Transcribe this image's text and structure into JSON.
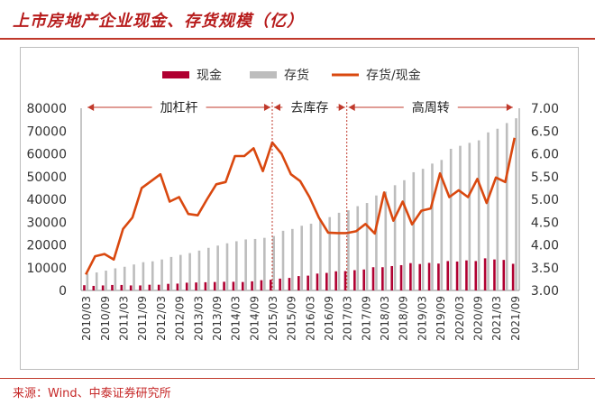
{
  "title": "上市房地产企业现金、存货规模（亿）",
  "source": "来源：Wind、中泰证券研究所",
  "colors": {
    "cash": "#b00031",
    "inventory": "#bdbdbd",
    "ratio": "#d9480f",
    "phase": "#c0392b",
    "title": "#b71c1c"
  },
  "chart_data": {
    "type": "bar",
    "legend": {
      "position": "top",
      "items": [
        "现金",
        "存货",
        "存货/现金"
      ]
    },
    "left_axis": {
      "ylim": [
        0,
        80000
      ],
      "ticks": [
        "0",
        "10000",
        "20000",
        "30000",
        "40000",
        "50000",
        "60000",
        "70000",
        "80000"
      ]
    },
    "right_axis": {
      "ylim": [
        3.0,
        7.0
      ],
      "ticks": [
        "3.00",
        "3.50",
        "4.00",
        "4.50",
        "5.00",
        "5.50",
        "6.00",
        "6.50",
        "7.00"
      ]
    },
    "x_tick_labels": [
      "2010/03",
      "2010/09",
      "2011/03",
      "2011/09",
      "2012/03",
      "2012/09",
      "2013/03",
      "2013/09",
      "2014/03",
      "2014/09",
      "2015/03",
      "2015/09",
      "2016/03",
      "2016/09",
      "2017/03",
      "2017/09",
      "2018/03",
      "2018/09",
      "2019/03",
      "2019/09",
      "2020/03",
      "2020/09",
      "2021/03",
      "2021/09"
    ],
    "phases": [
      {
        "label": "加杠杆",
        "start": "2010/03",
        "end": "2015/03"
      },
      {
        "label": "去库存",
        "start": "2015/03",
        "end": "2017/03"
      },
      {
        "label": "高周转",
        "start": "2017/03",
        "end": "2021/09"
      }
    ],
    "x": [
      "2010/03",
      "2010/06",
      "2010/09",
      "2010/12",
      "2011/03",
      "2011/06",
      "2011/09",
      "2011/12",
      "2012/03",
      "2012/06",
      "2012/09",
      "2012/12",
      "2013/03",
      "2013/06",
      "2013/09",
      "2013/12",
      "2014/03",
      "2014/06",
      "2014/09",
      "2014/12",
      "2015/03",
      "2015/06",
      "2015/09",
      "2015/12",
      "2016/03",
      "2016/06",
      "2016/09",
      "2016/12",
      "2017/03",
      "2017/06",
      "2017/09",
      "2017/12",
      "2018/03",
      "2018/06",
      "2018/09",
      "2018/12",
      "2019/03",
      "2019/06",
      "2019/09",
      "2019/12",
      "2020/03",
      "2020/06",
      "2020/09",
      "2020/12",
      "2021/03",
      "2021/06",
      "2021/09"
    ],
    "series": [
      {
        "name": "现金",
        "axis": "left",
        "type": "bar",
        "values": [
          2300,
          2000,
          2200,
          2400,
          2400,
          2200,
          2200,
          2500,
          2500,
          2900,
          3000,
          3400,
          3500,
          3600,
          3700,
          3800,
          3800,
          3700,
          4000,
          4500,
          4700,
          5200,
          5500,
          6300,
          6500,
          7400,
          7700,
          8400,
          8500,
          8900,
          9200,
          10200,
          10200,
          10700,
          11100,
          12000,
          11600,
          12100,
          11800,
          12900,
          12700,
          13200,
          12900,
          14100,
          13600,
          13400,
          11700
        ]
      },
      {
        "name": "存货",
        "axis": "left",
        "type": "bar",
        "values": [
          7400,
          7900,
          8700,
          9700,
          10400,
          11400,
          12400,
          12800,
          13600,
          14700,
          15600,
          16400,
          17500,
          18700,
          19700,
          20700,
          21600,
          22400,
          22600,
          23100,
          23900,
          26200,
          27000,
          28400,
          29300,
          31100,
          32200,
          34100,
          35200,
          37000,
          38400,
          41700,
          43400,
          46200,
          48400,
          51900,
          53400,
          55700,
          57300,
          62200,
          63500,
          64800,
          65900,
          69400,
          71000,
          73500,
          75600
        ]
      },
      {
        "name": "存货/现金",
        "axis": "right",
        "type": "line",
        "values": [
          3.35,
          3.75,
          3.8,
          3.68,
          4.35,
          4.6,
          5.25,
          5.4,
          5.55,
          4.95,
          5.05,
          4.68,
          4.65,
          5.0,
          5.33,
          5.38,
          5.95,
          5.95,
          6.12,
          5.62,
          6.25,
          6.0,
          5.55,
          5.4,
          5.05,
          4.6,
          4.27,
          4.26,
          4.26,
          4.3,
          4.46,
          4.25,
          5.15,
          4.53,
          4.95,
          4.45,
          4.75,
          4.8,
          5.57,
          5.05,
          5.2,
          5.05,
          5.45,
          4.92,
          5.48,
          5.38,
          6.35
        ]
      }
    ]
  }
}
